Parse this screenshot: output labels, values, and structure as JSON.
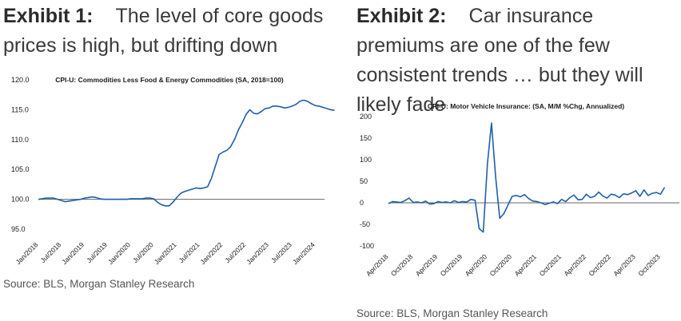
{
  "exhibits": [
    {
      "label": "Exhibit 1:",
      "title": "The level of core goods prices is high, but drifting down",
      "source": "Source: BLS, Morgan Stanley Research",
      "chart_data": {
        "type": "line",
        "title": "CPI-U: Commodities Less Food & Energy Commodities (SA, 2018=100)",
        "xlabel": "",
        "ylabel": "",
        "x_start": "2018-01",
        "x_end": "2024-03",
        "ylim": [
          95,
          120
        ],
        "yticks": [
          "120.0",
          "115.0",
          "110.0",
          "105.0",
          "100.0",
          "95.0"
        ],
        "xticks": [
          "Jan/2018",
          "Jul/2018",
          "Jan/2019",
          "Jul/2019",
          "Jan/2020",
          "Jul/2020",
          "Jan/2021",
          "Jul/2021",
          "Jan/2022",
          "Jul/2022",
          "Jan/2023",
          "Jul/2023",
          "Jan/2024"
        ],
        "reference_line": 100,
        "grid": false,
        "series_color": "#1f5fa8",
        "series": [
          {
            "values": [
              100.0,
              100.1,
              100.2,
              100.2,
              100.2,
              100.0,
              99.8,
              99.6,
              99.7,
              99.8,
              99.9,
              100.0,
              100.2,
              100.3,
              100.4,
              100.3,
              100.1,
              100.0,
              100.0,
              100.0,
              100.0,
              100.0,
              100.0,
              100.0,
              100.1,
              100.1,
              100.1,
              100.1,
              100.2,
              100.2,
              100.1,
              99.5,
              99.1,
              98.9,
              98.9,
              99.5,
              100.3,
              101.0,
              101.3,
              101.5,
              101.7,
              101.9,
              101.8,
              101.9,
              102.1,
              103.5,
              105.5,
              107.5,
              107.9,
              108.2,
              108.8,
              110.0,
              111.6,
              112.8,
              114.2,
              115.0,
              114.4,
              114.3,
              114.7,
              115.2,
              115.3,
              115.6,
              115.6,
              115.5,
              115.3,
              115.4,
              115.6,
              115.9,
              116.4,
              116.6,
              116.4,
              116.0,
              115.7,
              115.6,
              115.4,
              115.2,
              115.0,
              114.9
            ]
          }
        ]
      }
    },
    {
      "label": "Exhibit 2:",
      "title": "Car insurance premiums are one of the few consistent trends … but they will likely fade",
      "source": "Source: BLS, Morgan Stanley Research",
      "chart_data": {
        "type": "line",
        "title": "CPI-U: Motor Vehicle Insurance: (SA, M/M %Chg, Annualized)",
        "xlabel": "",
        "ylabel": "",
        "x_start": "2018-04",
        "x_end": "2024-02",
        "ylim": [
          -100,
          200
        ],
        "yticks": [
          "200",
          "150",
          "100",
          "50",
          "0",
          "-50",
          "-100"
        ],
        "xticks": [
          "Apr/2018",
          "Oct/2018",
          "Apr/2019",
          "Oct/2019",
          "Apr/2020",
          "Oct/2020",
          "Apr/2021",
          "Oct/2021",
          "Apr/2022",
          "Oct/2022",
          "Apr/2023",
          "Oct/2023"
        ],
        "reference_line": 0,
        "grid": false,
        "series_color": "#1f5fa8",
        "series": [
          {
            "values": [
              -2,
              3,
              2,
              1,
              5,
              11,
              1,
              2,
              0,
              4,
              -3,
              -2,
              3,
              1,
              2,
              0,
              5,
              1,
              3,
              2,
              8,
              6,
              -60,
              -68,
              90,
              185,
              60,
              -36,
              -25,
              -5,
              15,
              17,
              14,
              19,
              10,
              4,
              3,
              0,
              -4,
              -1,
              2,
              -2,
              8,
              3,
              12,
              18,
              7,
              8,
              20,
              12,
              15,
              25,
              16,
              11,
              20,
              18,
              12,
              21,
              19,
              23,
              28,
              15,
              30,
              17,
              22,
              24,
              20,
              36
            ]
          }
        ]
      }
    }
  ]
}
